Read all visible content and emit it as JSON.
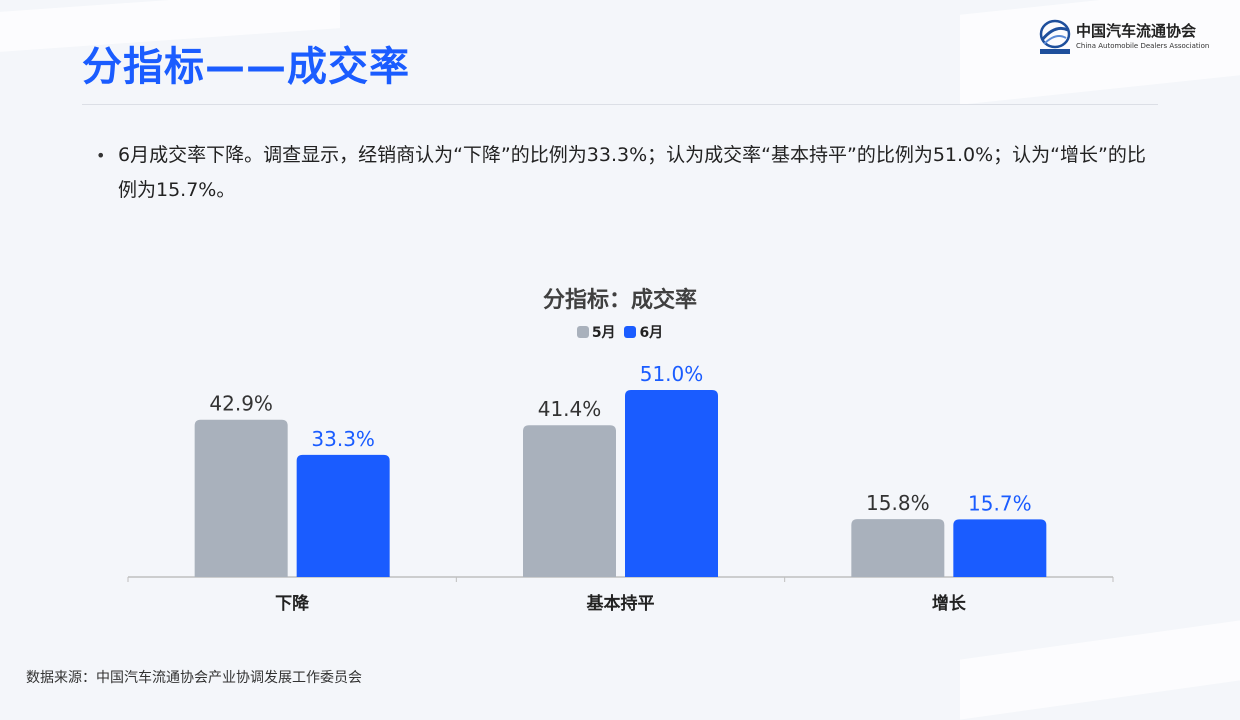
{
  "page": {
    "title": "分指标——成交率",
    "summary": "6月成交率下降。调查显示，经销商认为“下降”的比例为33.3%；认为成交率“基本持平”的比例为51.0%；认为“增长”的比例为15.7%。",
    "source": "数据来源：中国汽车流通协会产业协调发展工作委员会"
  },
  "logo": {
    "name_cn": "中国汽车流通协会",
    "name_en": "China Automobile Dealers Association"
  },
  "colors": {
    "title": "#1a5cff",
    "may": "#a9b1bc",
    "june": "#1a5cff"
  },
  "chart_data": {
    "type": "bar",
    "title": "分指标：成交率",
    "categories": [
      "下降",
      "基本持平",
      "增长"
    ],
    "series": [
      {
        "name": "5月",
        "values": [
          42.9,
          41.4,
          15.8
        ],
        "labels": [
          "42.9%",
          "41.4%",
          "15.8%"
        ]
      },
      {
        "name": "6月",
        "values": [
          33.3,
          51.0,
          15.7
        ],
        "labels": [
          "33.3%",
          "51.0%",
          "15.7%"
        ]
      }
    ],
    "unit": "%",
    "ylim": [
      0,
      55
    ],
    "grid": false,
    "legend": "top-center"
  }
}
